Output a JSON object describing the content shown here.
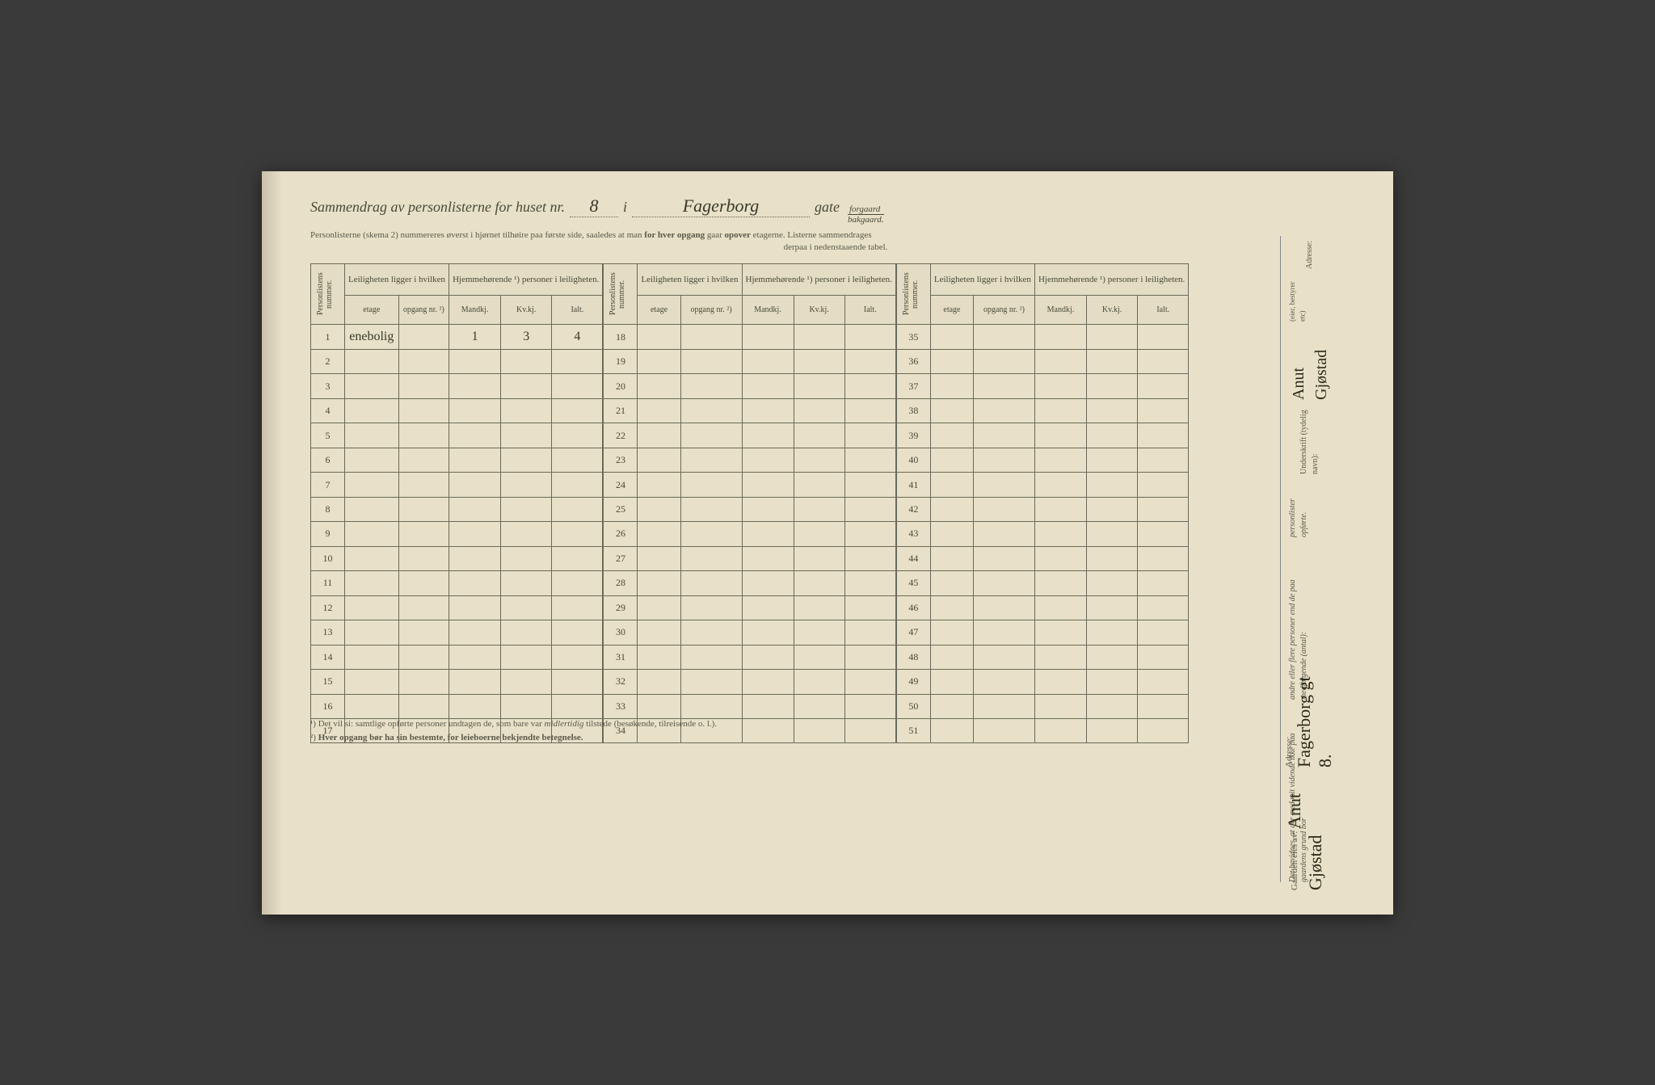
{
  "header": {
    "title_prefix": "Sammendrag av personlisterne for huset nr.",
    "house_nr": "8",
    "sep": "i",
    "street": "Fagerborg",
    "gate_label": "gate",
    "forgaard": "forgaard",
    "bakgaard": "bakgaard.",
    "instruction_line1_a": "Personlisterne (skema 2) nummereres øverst i hjørnet tilhøire paa første side, saaledes at man ",
    "instruction_line1_b": "for hver opgang",
    "instruction_line1_c": " gaar ",
    "instruction_line1_d": "opover",
    "instruction_line1_e": " etagerne.   Listerne sammendrages",
    "instruction_line2": "derpaa i nedenstaaende tabel."
  },
  "table": {
    "col_personlistens": "Personlistens nummer.",
    "col_leiligheten": "Leiligheten ligger i hvilken",
    "col_hjemmehorende": "Hjemmehørende ¹) personer i leiligheten.",
    "sub_etage": "etage",
    "sub_opgang": "opgang nr. ²)",
    "sub_mandkj": "Mandkj.",
    "sub_kvkj": "Kv.kj.",
    "sub_ialt": "Ialt.",
    "block1_rows": [
      "1",
      "2",
      "3",
      "4",
      "5",
      "6",
      "7",
      "8",
      "9",
      "10",
      "11",
      "12",
      "13",
      "14",
      "15",
      "16",
      "17"
    ],
    "block2_rows": [
      "18",
      "19",
      "20",
      "21",
      "22",
      "23",
      "24",
      "25",
      "26",
      "27",
      "28",
      "29",
      "30",
      "31",
      "32",
      "33",
      "34"
    ],
    "block3_rows": [
      "35",
      "36",
      "37",
      "38",
      "39",
      "40",
      "41",
      "42",
      "43",
      "44",
      "45",
      "46",
      "47",
      "48",
      "49",
      "50",
      "51"
    ],
    "row1": {
      "etage": "enebolig",
      "opgang": "",
      "mandkj": "1",
      "kvkj": "3",
      "ialt": "4"
    }
  },
  "footnotes": {
    "f1_a": "¹) Det vil si: samtlige opførte personer undtagen de, som bare var ",
    "f1_b": "midlertidig",
    "f1_c": " tilstede (besøkende, tilreisende o. l.).",
    "f2_a": "²) ",
    "f2_b": "Hver opgang bør ha sin bestemte, for leieboerne bekjendte betegnelse."
  },
  "side": {
    "attest_a": "Det bevidnes, at der med mit vidende ikke paa gaardens grund bor",
    "attest_b": "andre eller flere personer end de paa medfølgende (antal):",
    "attest_c": "personlister opførte.",
    "underskrift_label": "Underskrift (tydelig navn):",
    "signature": "Anut Gjøstad",
    "eier_label": "(eier, bestyrer etc)",
    "adresse_label": "Adresse:"
  },
  "bottom_sig": {
    "gaard_label": "Gaarden eies av:",
    "owner_sig": "Anut Gjøstad",
    "adresse_label": "Adresse:",
    "adresse_val": "Fagerborg gt 8."
  },
  "colors": {
    "paper": "#e8e0c8",
    "ink": "#4a4a3a",
    "handwriting": "#3a3a2a",
    "border": "#6a6a5a",
    "background": "#3a3a3a"
  }
}
